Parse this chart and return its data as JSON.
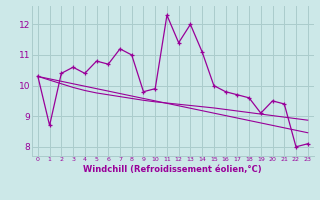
{
  "x": [
    0,
    1,
    2,
    3,
    4,
    5,
    6,
    7,
    8,
    9,
    10,
    11,
    12,
    13,
    14,
    15,
    16,
    17,
    18,
    19,
    20,
    21,
    22,
    23
  ],
  "line1": [
    10.3,
    8.7,
    10.4,
    10.6,
    10.4,
    10.8,
    10.7,
    11.2,
    11.0,
    9.8,
    9.9,
    12.3,
    11.4,
    12.0,
    11.1,
    10.0,
    9.8,
    9.7,
    9.6,
    9.1,
    9.5,
    9.4,
    8.0,
    8.1
  ],
  "trend1": [
    10.3,
    10.22,
    10.14,
    10.06,
    9.98,
    9.9,
    9.82,
    9.74,
    9.66,
    9.58,
    9.5,
    9.42,
    9.34,
    9.26,
    9.18,
    9.1,
    9.02,
    8.94,
    8.86,
    8.78,
    8.7,
    8.62,
    8.54,
    8.46
  ],
  "trend2": [
    10.3,
    10.18,
    10.06,
    9.94,
    9.84,
    9.76,
    9.7,
    9.64,
    9.58,
    9.52,
    9.47,
    9.43,
    9.39,
    9.35,
    9.31,
    9.27,
    9.22,
    9.17,
    9.12,
    9.07,
    9.02,
    8.97,
    8.92,
    8.87
  ],
  "color": "#990099",
  "bgcolor": "#cce8e8",
  "grid_color": "#aacccc",
  "xlabel": "Windchill (Refroidissement éolien,°C)",
  "ylim": [
    7.7,
    12.6
  ],
  "xlim": [
    -0.5,
    23.5
  ],
  "yticks": [
    8,
    9,
    10,
    11,
    12
  ],
  "xticks": [
    0,
    1,
    2,
    3,
    4,
    5,
    6,
    7,
    8,
    9,
    10,
    11,
    12,
    13,
    14,
    15,
    16,
    17,
    18,
    19,
    20,
    21,
    22,
    23
  ]
}
